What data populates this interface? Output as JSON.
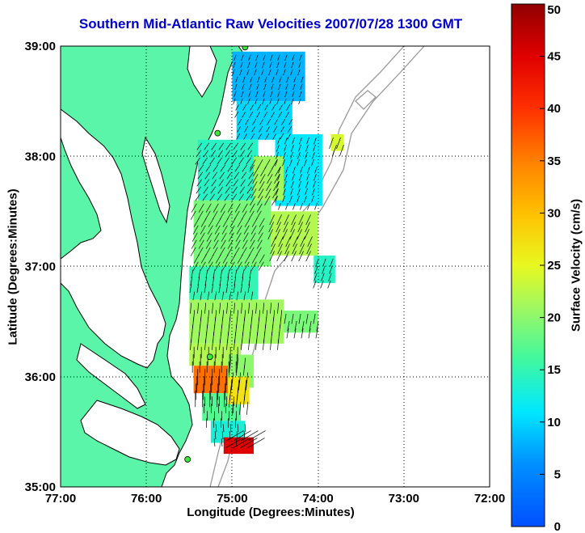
{
  "title": "Southern Mid-Atlantic Raw Velocities 2007/07/28 1300 GMT",
  "xlabel": "Longitude (Degrees:Minutes)",
  "ylabel": "Latitude (Degrees:Minutes)",
  "colorbar_label": "Surface Velocity (cm/s)",
  "chart_data": {
    "type": "heatmap",
    "title": "Southern Mid-Atlantic Raw Velocities 2007/07/28 1300 GMT",
    "xlabel": "Longitude (Degrees:Minutes)",
    "ylabel": "Latitude (Degrees:Minutes)",
    "xlim": [
      -77.0,
      -72.0
    ],
    "ylim": [
      35.0,
      39.0
    ],
    "x_ticks": [
      {
        "value": -77,
        "label": "77:00"
      },
      {
        "value": -76,
        "label": "76:00"
      },
      {
        "value": -75,
        "label": "75:00"
      },
      {
        "value": -74,
        "label": "74:00"
      },
      {
        "value": -73,
        "label": "73:00"
      },
      {
        "value": -72,
        "label": "72:00"
      }
    ],
    "y_ticks": [
      {
        "value": 35,
        "label": "35:00"
      },
      {
        "value": 36,
        "label": "36:00"
      },
      {
        "value": 37,
        "label": "37:00"
      },
      {
        "value": 38,
        "label": "38:00"
      },
      {
        "value": 39,
        "label": "39:00"
      }
    ],
    "grid": true,
    "colorbar": {
      "label": "Surface Velocity (cm/s)",
      "range": [
        0,
        50
      ],
      "ticks": [
        "0",
        "5",
        "10",
        "15",
        "20",
        "25",
        "30",
        "35",
        "40",
        "45",
        "50"
      ],
      "colormap": "jet"
    },
    "colors": {
      "land": "#5af5a8",
      "coast": "#000000",
      "bathymetry": "#999999",
      "station": "#33ee33"
    },
    "radar_stations": [
      {
        "lon": -74.85,
        "lat": 38.99
      },
      {
        "lon": -75.17,
        "lat": 38.21
      },
      {
        "lon": -75.26,
        "lat": 36.18
      },
      {
        "lon": -75.52,
        "lat": 35.25
      }
    ],
    "velocity_regions": [
      {
        "lon_range": [
          -75.0,
          -74.15
        ],
        "lat_range": [
          38.5,
          38.95
        ],
        "speed": 8,
        "dir": 200
      },
      {
        "lon_range": [
          -74.95,
          -74.3
        ],
        "lat_range": [
          38.15,
          38.5
        ],
        "speed": 10,
        "dir": 210
      },
      {
        "lon_range": [
          -74.5,
          -73.95
        ],
        "lat_range": [
          37.55,
          38.2
        ],
        "speed": 11,
        "dir": 200
      },
      {
        "lon_range": [
          -75.4,
          -74.7
        ],
        "lat_range": [
          37.6,
          38.15
        ],
        "speed": 14,
        "dir": 215
      },
      {
        "lon_range": [
          -74.75,
          -74.4
        ],
        "lat_range": [
          37.6,
          38.0
        ],
        "speed": 21,
        "dir": 210
      },
      {
        "lon_range": [
          -75.45,
          -74.55
        ],
        "lat_range": [
          37.0,
          37.6
        ],
        "speed": 19,
        "dir": 210
      },
      {
        "lon_range": [
          -74.55,
          -74.0
        ],
        "lat_range": [
          37.1,
          37.5
        ],
        "speed": 22,
        "dir": 205
      },
      {
        "lon_range": [
          -75.5,
          -74.7
        ],
        "lat_range": [
          36.7,
          37.0
        ],
        "speed": 15,
        "dir": 190
      },
      {
        "lon_range": [
          -75.5,
          -74.4
        ],
        "lat_range": [
          36.3,
          36.7
        ],
        "speed": 21,
        "dir": 185
      },
      {
        "lon_range": [
          -74.4,
          -74.0
        ],
        "lat_range": [
          36.4,
          36.6
        ],
        "speed": 19,
        "dir": 190
      },
      {
        "lon_range": [
          -75.5,
          -74.9
        ],
        "lat_range": [
          36.1,
          36.3
        ],
        "speed": 22,
        "dir": 180
      },
      {
        "lon_range": [
          -75.45,
          -75.0
        ],
        "lat_range": [
          35.85,
          36.1
        ],
        "speed": 36,
        "dir": 180
      },
      {
        "lon_range": [
          -75.05,
          -74.75
        ],
        "lat_range": [
          35.9,
          36.2
        ],
        "speed": 20,
        "dir": 185
      },
      {
        "lon_range": [
          -75.35,
          -74.9
        ],
        "lat_range": [
          35.6,
          35.85
        ],
        "speed": 17,
        "dir": 180
      },
      {
        "lon_range": [
          -75.05,
          -74.8
        ],
        "lat_range": [
          35.75,
          36.0
        ],
        "speed": 27,
        "dir": 185
      },
      {
        "lon_range": [
          -75.25,
          -74.85
        ],
        "lat_range": [
          35.4,
          35.6
        ],
        "speed": 13,
        "dir": 175
      },
      {
        "lon_range": [
          -75.1,
          -74.75
        ],
        "lat_range": [
          35.3,
          35.45
        ],
        "speed": 45,
        "dir": 60
      },
      {
        "lon_range": [
          -74.05,
          -73.8
        ],
        "lat_range": [
          36.85,
          37.1
        ],
        "speed": 14,
        "dir": 200
      },
      {
        "lon_range": [
          -73.85,
          -73.7
        ],
        "lat_range": [
          38.05,
          38.2
        ],
        "speed": 24,
        "dir": 200
      }
    ]
  }
}
